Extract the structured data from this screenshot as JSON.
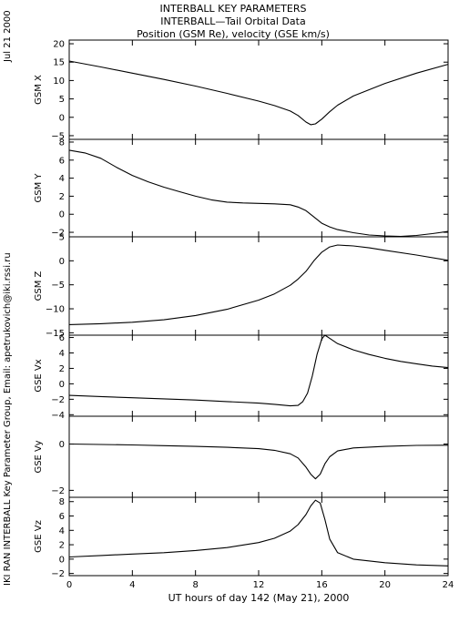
{
  "header": {
    "title_line1": "INTERBALL KEY PARAMETERS",
    "title_line2": "INTERBALL—Tail Orbital Data",
    "title_line3": "Position (GSM Re), velocity (GSE km/s)",
    "date": "Jul 21 2000",
    "credit": "IKI RAN INTERBALL Key Parameter Group, Email: apetrukovich@iki.rssi.ru"
  },
  "chart_data": {
    "type": "line",
    "xlabel": "UT hours of day 142 (May 21), 2000",
    "xlim": [
      0,
      24
    ],
    "xticks": [
      0,
      4,
      8,
      12,
      16,
      20,
      24
    ],
    "panels": [
      {
        "ylabel": "GSM X",
        "ylim": [
          -6,
          21
        ],
        "yticks": [
          -5,
          0,
          5,
          10,
          15,
          20
        ],
        "x": [
          0,
          2,
          4,
          6,
          8,
          10,
          12,
          13,
          14,
          14.5,
          15,
          15.3,
          15.6,
          16,
          16.5,
          17,
          18,
          20,
          22,
          24
        ],
        "y": [
          15.3,
          13.7,
          12,
          10.3,
          8.5,
          6.5,
          4.4,
          3.2,
          1.7,
          0.5,
          -1.3,
          -2,
          -1.8,
          -0.5,
          1.5,
          3.3,
          5.8,
          9.2,
          12,
          14.4
        ]
      },
      {
        "ylabel": "GSM Y",
        "ylim": [
          -2.5,
          8.3
        ],
        "yticks": [
          -2,
          0,
          2,
          4,
          6,
          8
        ],
        "x": [
          0,
          1,
          2,
          3,
          4,
          5,
          6,
          7,
          8,
          9,
          10,
          11,
          12,
          13,
          14,
          14.5,
          15,
          15.5,
          16,
          16.5,
          17,
          18,
          19,
          20,
          21,
          22,
          23,
          24
        ],
        "y": [
          7.1,
          6.8,
          6.2,
          5.2,
          4.3,
          3.6,
          3.0,
          2.5,
          2.0,
          1.6,
          1.35,
          1.25,
          1.2,
          1.15,
          1.05,
          0.8,
          0.4,
          -0.3,
          -1.0,
          -1.4,
          -1.7,
          -2.05,
          -2.3,
          -2.4,
          -2.45,
          -2.35,
          -2.15,
          -1.9
        ]
      },
      {
        "ylabel": "GSM Z",
        "ylim": [
          -15.5,
          5
        ],
        "yticks": [
          -15,
          -10,
          -5,
          0,
          5
        ],
        "x": [
          0,
          2,
          4,
          6,
          8,
          10,
          12,
          13,
          14,
          14.5,
          15,
          15.5,
          16,
          16.5,
          17,
          18,
          19,
          20,
          22,
          24
        ],
        "y": [
          -13.3,
          -13.1,
          -12.8,
          -12.3,
          -11.4,
          -10.1,
          -8.2,
          -6.9,
          -5.1,
          -3.8,
          -2.2,
          0,
          1.8,
          2.9,
          3.3,
          3.1,
          2.7,
          2.2,
          1.2,
          0.1
        ]
      },
      {
        "ylabel": "GSE Vx",
        "ylim": [
          -4.2,
          6.3
        ],
        "yticks": [
          -4,
          -2,
          0,
          2,
          4,
          6
        ],
        "x": [
          0,
          2,
          4,
          6,
          8,
          10,
          12,
          13,
          14,
          14.5,
          14.8,
          15.1,
          15.4,
          15.7,
          16,
          16.2,
          16.5,
          17,
          18,
          19,
          20,
          21,
          22,
          23,
          24
        ],
        "y": [
          -1.5,
          -1.65,
          -1.8,
          -1.95,
          -2.1,
          -2.3,
          -2.5,
          -2.65,
          -2.85,
          -2.8,
          -2.3,
          -1.2,
          1.0,
          3.8,
          5.8,
          6.3,
          5.9,
          5.2,
          4.4,
          3.8,
          3.3,
          2.9,
          2.6,
          2.3,
          2.1
        ]
      },
      {
        "ylabel": "GSE Vy",
        "ylim": [
          -2.3,
          1.2
        ],
        "yticks": [
          -2,
          0
        ],
        "x": [
          0,
          2,
          4,
          6,
          8,
          10,
          12,
          13,
          14,
          14.5,
          15,
          15.3,
          15.6,
          15.9,
          16.2,
          16.5,
          17,
          18,
          20,
          22,
          24
        ],
        "y": [
          0,
          -0.02,
          -0.04,
          -0.07,
          -0.1,
          -0.14,
          -0.2,
          -0.27,
          -0.42,
          -0.6,
          -1.0,
          -1.3,
          -1.5,
          -1.3,
          -0.85,
          -0.55,
          -0.3,
          -0.17,
          -0.1,
          -0.06,
          -0.05
        ]
      },
      {
        "ylabel": "GSE Vz",
        "ylim": [
          -2.3,
          8.6
        ],
        "yticks": [
          -2,
          0,
          2,
          4,
          6,
          8
        ],
        "x": [
          0,
          2,
          4,
          6,
          8,
          10,
          12,
          13,
          14,
          14.5,
          15,
          15.3,
          15.6,
          15.9,
          16.2,
          16.5,
          17,
          18,
          20,
          22,
          24
        ],
        "y": [
          0.3,
          0.5,
          0.7,
          0.9,
          1.2,
          1.6,
          2.3,
          2.9,
          3.9,
          4.8,
          6.2,
          7.4,
          8.2,
          7.8,
          5.5,
          2.8,
          0.9,
          0.0,
          -0.5,
          -0.8,
          -0.95
        ]
      }
    ]
  }
}
